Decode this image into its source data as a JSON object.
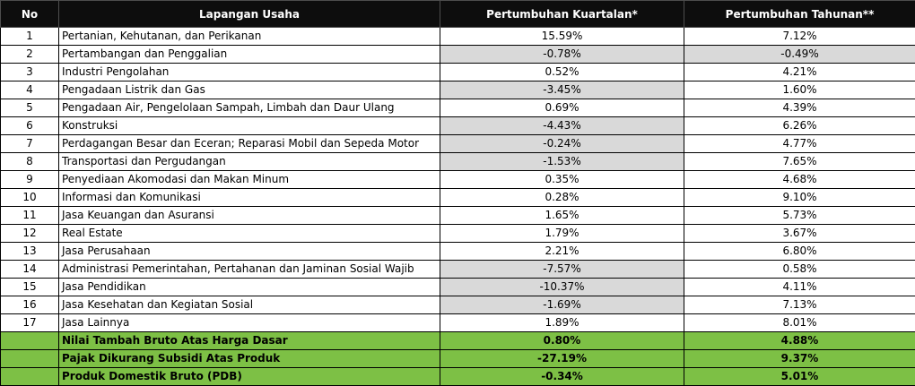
{
  "headers": {
    "no": "No",
    "sector": "Lapangan Usaha",
    "quarterly": "Pertumbuhan Kuartalan*",
    "annual": "Pertumbuhan Tahunan**"
  },
  "rows": [
    {
      "no": "1",
      "sector": "Pertanian, Kehutanan, dan Perikanan",
      "quarterly": "15.59%",
      "annual": "7.12%"
    },
    {
      "no": "2",
      "sector": "Pertambangan dan Penggalian",
      "quarterly": "-0.78%",
      "annual": "-0.49%"
    },
    {
      "no": "3",
      "sector": "Industri Pengolahan",
      "quarterly": "0.52%",
      "annual": "4.21%"
    },
    {
      "no": "4",
      "sector": "Pengadaan Listrik dan Gas",
      "quarterly": "-3.45%",
      "annual": "1.60%"
    },
    {
      "no": "5",
      "sector": "Pengadaan Air, Pengelolaan Sampah, Limbah dan Daur Ulang",
      "quarterly": "0.69%",
      "annual": "4.39%"
    },
    {
      "no": "6",
      "sector": "Konstruksi",
      "quarterly": "-4.43%",
      "annual": "6.26%"
    },
    {
      "no": "7",
      "sector": "Perdagangan Besar dan Eceran; Reparasi Mobil dan Sepeda Motor",
      "quarterly": "-0.24%",
      "annual": "4.77%"
    },
    {
      "no": "8",
      "sector": "Transportasi dan Pergudangan",
      "quarterly": "-1.53%",
      "annual": "7.65%"
    },
    {
      "no": "9",
      "sector": "Penyediaan Akomodasi dan Makan Minum",
      "quarterly": "0.35%",
      "annual": "4.68%"
    },
    {
      "no": "10",
      "sector": "Informasi dan Komunikasi",
      "quarterly": "0.28%",
      "annual": "9.10%"
    },
    {
      "no": "11",
      "sector": "Jasa Keuangan dan Asuransi",
      "quarterly": "1.65%",
      "annual": "5.73%"
    },
    {
      "no": "12",
      "sector": "Real Estate",
      "quarterly": "1.79%",
      "annual": "3.67%"
    },
    {
      "no": "13",
      "sector": "Jasa Perusahaan",
      "quarterly": "2.21%",
      "annual": "6.80%"
    },
    {
      "no": "14",
      "sector": "Administrasi Pemerintahan, Pertahanan dan Jaminan Sosial Wajib",
      "quarterly": "-7.57%",
      "annual": "0.58%"
    },
    {
      "no": "15",
      "sector": "Jasa Pendidikan",
      "quarterly": "-10.37%",
      "annual": "4.11%"
    },
    {
      "no": "16",
      "sector": "Jasa Kesehatan dan Kegiatan Sosial",
      "quarterly": "-1.69%",
      "annual": "7.13%"
    },
    {
      "no": "17",
      "sector": "Jasa Lainnya",
      "quarterly": "1.89%",
      "annual": "8.01%"
    }
  ],
  "totals": [
    {
      "label": "Nilai Tambah Bruto Atas Harga Dasar",
      "quarterly": "0.80%",
      "annual": "4.88%"
    },
    {
      "label": "Pajak Dikurang Subsidi Atas Produk",
      "quarterly": "-27.19%",
      "annual": "9.37%"
    },
    {
      "label": "Produk Domestik Bruto (PDB)",
      "quarterly": "-0.34%",
      "annual": "5.01%"
    }
  ],
  "colors": {
    "header_bg": "#0d0d0d",
    "negative_bg": "#d9d9d9",
    "total_bg": "#7dc045"
  }
}
